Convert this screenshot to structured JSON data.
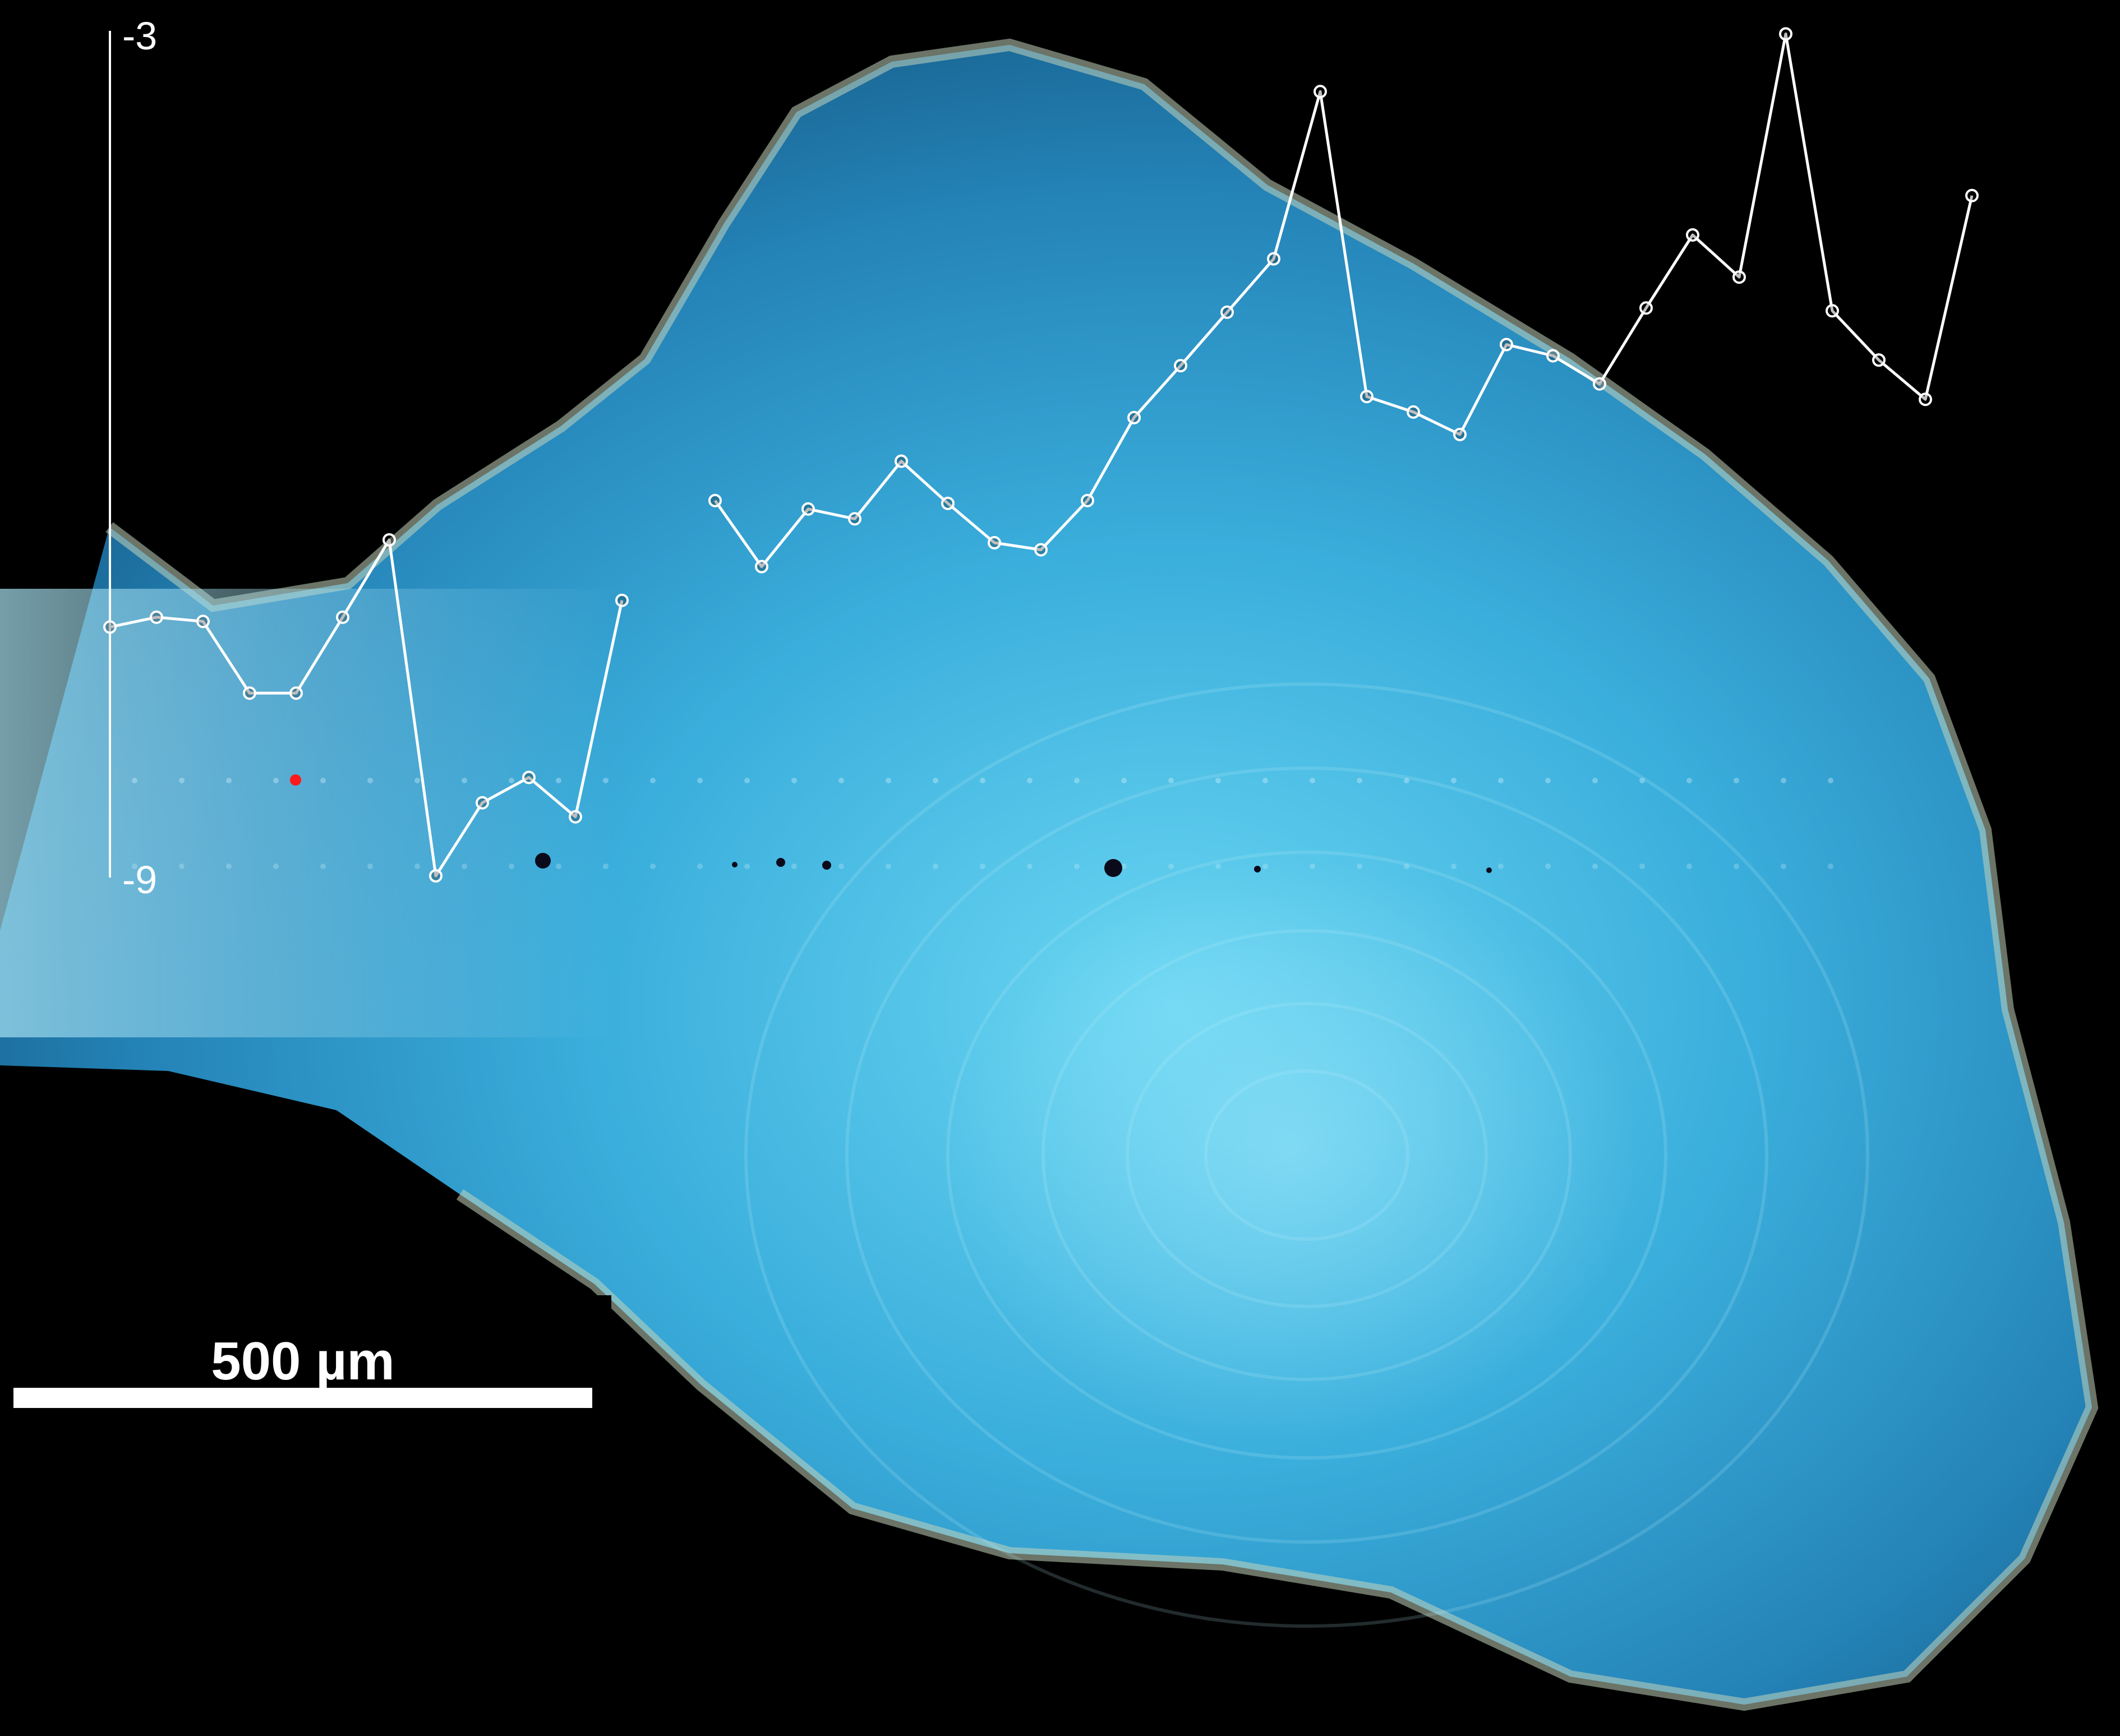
{
  "colors": {
    "background": "#000000",
    "otolith_core": "#5fcfee",
    "otolith_mid": "#2f9fd0",
    "otolith_edge": "#1d6e9a",
    "rim": "#b8c8b0",
    "line": "#ffffff",
    "marker": "#ff1a1a"
  },
  "chart_data": {
    "type": "line",
    "title": "",
    "xlabel": "",
    "ylabel": "",
    "ylim": [
      -9,
      -3
    ],
    "y_ticks": [
      {
        "value": -3,
        "label": "-3"
      },
      {
        "value": -9,
        "label": "-9"
      }
    ],
    "x_axis_printed": false,
    "grid": false,
    "legend": "none",
    "scale_bar": {
      "label": "500 µm"
    },
    "series": [
      {
        "values": [
          -7.23,
          -7.16,
          -7.19,
          -7.7,
          -7.7,
          -7.16,
          -6.61,
          -9.0,
          -8.48,
          -8.3,
          -8.58,
          -7.04
        ],
        "x": [
          1,
          2,
          3,
          4,
          5,
          6,
          7,
          8,
          9,
          10,
          11,
          12
        ]
      },
      {
        "values": [
          -6.33,
          -6.8,
          -6.39,
          -6.46,
          -6.05,
          -6.35,
          -6.63,
          -6.68,
          -6.33,
          -5.74,
          -5.37,
          -4.99,
          -4.61,
          -3.42,
          -5.59,
          -5.7,
          -5.86,
          -5.22,
          -5.3,
          -5.5,
          -4.96,
          -4.44,
          -4.74,
          -3.01,
          -4.98,
          -5.33,
          -5.61,
          -4.16
        ],
        "x": [
          14,
          15,
          16,
          17,
          18,
          19,
          20,
          21,
          22,
          23,
          24,
          25,
          26,
          27,
          28,
          29,
          30,
          31,
          32,
          33,
          34,
          35,
          36,
          37,
          38,
          39,
          40,
          41
        ]
      }
    ],
    "annotations": []
  }
}
